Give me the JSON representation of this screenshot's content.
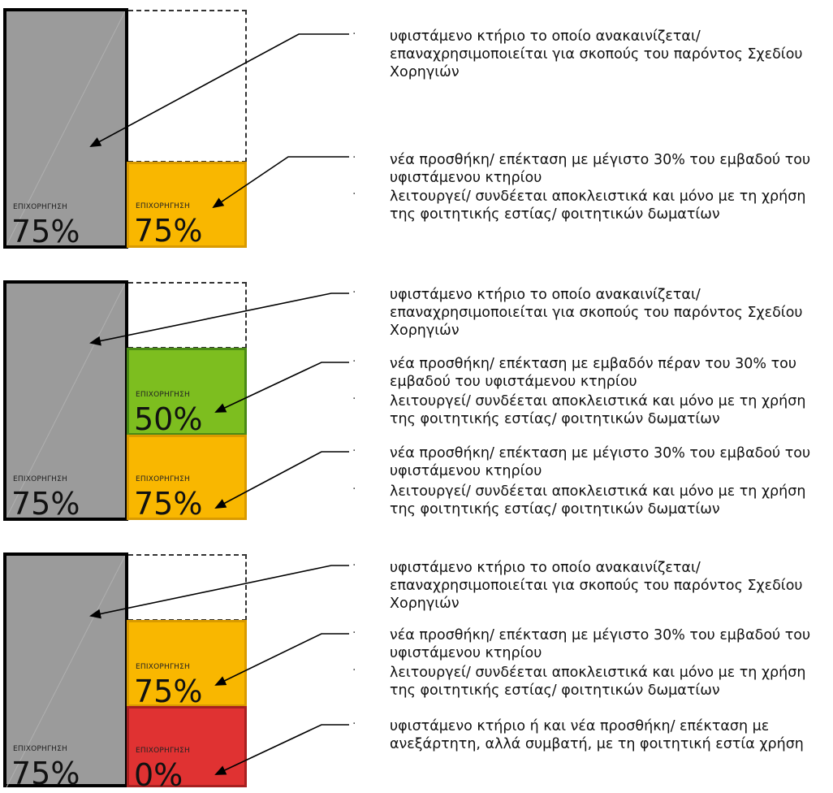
{
  "panels": [
    {
      "existing": {
        "small": "ΕΠΙΧΟΡΗΓΗΣΗ",
        "big": "75%"
      },
      "blocks": [
        {
          "small": "ΕΠΙΧΟΡΗΓΗΣΗ",
          "big": "75%",
          "color": "#f9b700"
        }
      ],
      "bullets": [
        "υφιστάμενο κτήριο το οποίο ανακαινίζεται/ επαναχρησιμοποιείται για σκοπούς του παρόντος Σχεδίου Χορηγιών",
        "νέα προσθήκη/ επέκταση με μέγιστο 30% του εμβαδού του υφιστάμενου κτηρίου",
        "λειτουργεί/ συνδέεται αποκλειστικά και μόνο με τη χρήση της φοιτητικής εστίας/ φοιτητικών δωματίων"
      ]
    },
    {
      "existing": {
        "small": "ΕΠΙΧΟΡΗΓΗΣΗ",
        "big": "75%"
      },
      "blocks": [
        {
          "small": "ΕΠΙΧΟΡΗΓΗΣΗ",
          "big": "50%",
          "color": "#7dbe1f"
        },
        {
          "small": "ΕΠΙΧΟΡΗΓΗΣΗ",
          "big": "75%",
          "color": "#f9b700"
        }
      ],
      "bullets": [
        "υφιστάμενο κτήριο το οποίο ανακαινίζεται/ επαναχρησιμοποιείται για σκοπούς του παρόντος Σχεδίου Χορηγιών",
        "νέα προσθήκη/ επέκταση με εμβαδόν πέραν του 30% του εμβαδού του υφιστάμενου κτηρίου",
        "λειτουργεί/ συνδέεται αποκλειστικά και μόνο με τη χρήση της φοιτητικής εστίας/ φοιτητικών δωματίων",
        "νέα προσθήκη/ επέκταση με μέγιστο 30% του εμβαδού του υφιστάμενου κτηρίου",
        "λειτουργεί/ συνδέεται αποκλειστικά και μόνο με τη χρήση της φοιτητικής εστίας/ φοιτητικών δωματίων"
      ]
    },
    {
      "existing": {
        "small": "ΕΠΙΧΟΡΗΓΗΣΗ",
        "big": "75%"
      },
      "blocks": [
        {
          "small": "ΕΠΙΧΟΡΗΓΗΣΗ",
          "big": "75%",
          "color": "#f9b700"
        },
        {
          "small": "ΕΠΙΧΟΡΗΓΗΣΗ",
          "big": "0%",
          "color": "#e03232"
        }
      ],
      "bullets": [
        "υφιστάμενο κτήριο το οποίο ανακαινίζεται/ επαναχρησιμοποιείται για σκοπούς του παρόντος Σχεδίου Χορηγιών",
        "νέα προσθήκη/ επέκταση με μέγιστο 30% του εμβαδού του υφιστάμενου κτηρίου",
        "λειτουργεί/ συνδέεται αποκλειστικά και μόνο με τη χρήση της φοιτητικής εστίας/ φοιτητικών δωματίων",
        "υφιστάμενο κτήριο ή και νέα προσθήκη/ επέκταση με ανεξάρτητη, αλλά συμβατή, με τη φοιτητική εστία χρήση"
      ]
    }
  ]
}
